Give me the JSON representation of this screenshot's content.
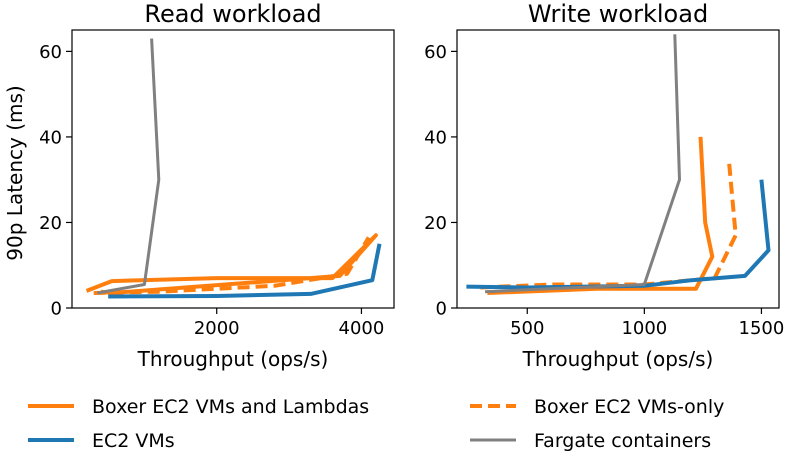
{
  "figure": {
    "shared_ylabel": "90p Latency (ms)"
  },
  "chart_data": [
    {
      "type": "line",
      "title": "Read workload",
      "xlabel": "Throughput (ops/s)",
      "ylabel": "90p Latency (ms)",
      "xlim": [
        0,
        4450
      ],
      "ylim": [
        0,
        65
      ],
      "xticks": [
        2000,
        4000
      ],
      "yticks": [
        0,
        20,
        40,
        60
      ],
      "grid": false,
      "series": [
        {
          "name": "Boxer EC2 VMs and Lambdas",
          "color": "#ff7f0e",
          "style": "solid",
          "points": [
            [
              200,
              4.0
            ],
            [
              550,
              6.3
            ],
            [
              2000,
              7.0
            ],
            [
              3600,
              7.0
            ],
            [
              4200,
              17.0
            ],
            [
              3700,
              7.5
            ],
            [
              550,
              3.5
            ],
            [
              400,
              3.8
            ]
          ]
        },
        {
          "name": "Boxer EC2 VMs-only",
          "color": "#ff7f0e",
          "style": "dashed",
          "points": [
            [
              300,
              3.5
            ],
            [
              1200,
              3.8
            ],
            [
              2800,
              5.2
            ],
            [
              3800,
              8.0
            ],
            [
              4100,
              16.5
            ]
          ]
        },
        {
          "name": "EC2 VMs",
          "color": "#1f77b4",
          "style": "solid",
          "points": [
            [
              500,
              2.7
            ],
            [
              2000,
              2.8
            ],
            [
              3300,
              3.3
            ],
            [
              4150,
              6.5
            ],
            [
              4250,
              15.0
            ]
          ]
        },
        {
          "name": "Fargate containers",
          "color": "#808080",
          "style": "solid",
          "points": [
            [
              350,
              3.5
            ],
            [
              1000,
              5.5
            ],
            [
              1200,
              30.0
            ],
            [
              1100,
              63.0
            ]
          ]
        }
      ]
    },
    {
      "type": "line",
      "title": "Write workload",
      "xlabel": "Throughput (ops/s)",
      "ylabel": "",
      "xlim": [
        200,
        1575
      ],
      "ylim": [
        0,
        65
      ],
      "xticks": [
        500,
        1000,
        1500
      ],
      "yticks": [
        0,
        20,
        40,
        60
      ],
      "grid": false,
      "series": [
        {
          "name": "Boxer EC2 VMs and Lambdas",
          "color": "#ff7f0e",
          "style": "solid",
          "points": [
            [
              330,
              3.5
            ],
            [
              800,
              4.5
            ],
            [
              1220,
              4.5
            ],
            [
              1290,
              12.0
            ],
            [
              1260,
              20.0
            ],
            [
              1240,
              40.0
            ]
          ]
        },
        {
          "name": "Boxer EC2 VMs-only",
          "color": "#ff7f0e",
          "style": "dashed",
          "points": [
            [
              300,
              4.8
            ],
            [
              600,
              5.5
            ],
            [
              1000,
              5.5
            ],
            [
              1300,
              7.0
            ],
            [
              1390,
              17.0
            ],
            [
              1360,
              35.0
            ]
          ]
        },
        {
          "name": "EC2 VMs",
          "color": "#1f77b4",
          "style": "solid",
          "points": [
            [
              240,
              5.0
            ],
            [
              500,
              4.8
            ],
            [
              1000,
              5.2
            ],
            [
              1200,
              6.5
            ],
            [
              1430,
              7.5
            ],
            [
              1530,
              13.5
            ],
            [
              1500,
              30.0
            ]
          ]
        },
        {
          "name": "Fargate containers",
          "color": "#808080",
          "style": "solid",
          "points": [
            [
              320,
              3.8
            ],
            [
              1000,
              5.5
            ],
            [
              1150,
              30.0
            ],
            [
              1130,
              64.0
            ]
          ]
        }
      ]
    }
  ],
  "legend": {
    "placement": "bottom",
    "items": [
      {
        "label": "Boxer EC2 VMs and Lambdas",
        "color": "#ff7f0e",
        "style": "solid"
      },
      {
        "label": "Boxer EC2 VMs-only",
        "color": "#ff7f0e",
        "style": "dashed"
      },
      {
        "label": "EC2 VMs",
        "color": "#1f77b4",
        "style": "solid"
      },
      {
        "label": "Fargate containers",
        "color": "#808080",
        "style": "solid"
      }
    ]
  }
}
